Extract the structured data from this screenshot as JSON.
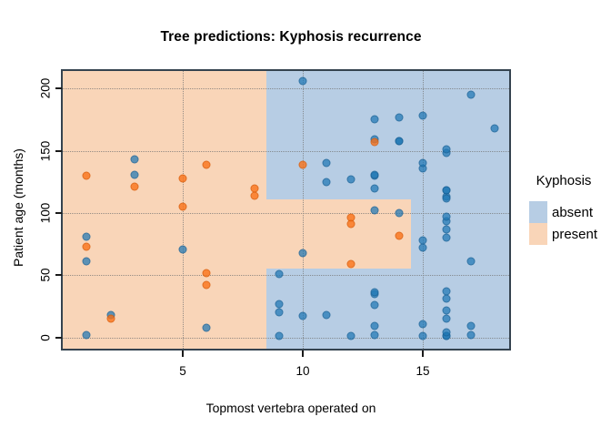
{
  "title": "Tree predictions: Kyphosis recurrence",
  "chart_data": {
    "type": "scatter",
    "title": "Tree predictions: Kyphosis recurrence",
    "xlabel": "Topmost vertebra operated on",
    "ylabel": "Patient age (months)",
    "xlim": [
      0,
      18.6
    ],
    "ylim": [
      -9,
      214
    ],
    "x_ticks": [
      5,
      10,
      15
    ],
    "y_ticks": [
      0,
      50,
      100,
      150,
      200
    ],
    "grid": "dotted",
    "colors": {
      "region_absent": "#b7cde4",
      "region_present": "#f9d5b8",
      "point_absent": "#1f77b4",
      "point_present": "#fa7014",
      "frame": "#35434f"
    },
    "decision_regions": {
      "background_class": "absent",
      "present_rects": [
        {
          "x0": 0,
          "x1": 8.5,
          "y0": -9,
          "y1": 214
        },
        {
          "x0": 8.5,
          "x1": 14.5,
          "y0": 55,
          "y1": 111
        }
      ]
    },
    "legend": {
      "title": "Kyphosis",
      "position": "right",
      "entries": [
        {
          "label": "absent",
          "color": "#b7cde4"
        },
        {
          "label": "present",
          "color": "#f9d5b8"
        }
      ]
    },
    "series": [
      {
        "name": "absent",
        "points": [
          [
            5,
            71
          ],
          [
            14,
            158
          ],
          [
            1,
            2
          ],
          [
            15,
            1
          ],
          [
            16,
            1
          ],
          [
            17,
            61
          ],
          [
            16,
            37
          ],
          [
            16,
            113
          ],
          [
            16,
            148
          ],
          [
            2,
            18
          ],
          [
            12,
            1
          ],
          [
            18,
            168
          ],
          [
            16,
            1
          ],
          [
            15,
            78
          ],
          [
            13,
            175
          ],
          [
            16,
            80
          ],
          [
            9,
            27
          ],
          [
            16,
            22
          ],
          [
            3,
            131
          ],
          [
            13,
            9
          ],
          [
            6,
            8
          ],
          [
            14,
            100
          ],
          [
            16,
            4
          ],
          [
            16,
            151
          ],
          [
            16,
            31
          ],
          [
            11,
            125
          ],
          [
            13,
            130
          ],
          [
            16,
            112
          ],
          [
            11,
            140
          ],
          [
            16,
            93
          ],
          [
            9,
            1
          ],
          [
            9,
            20
          ],
          [
            13,
            35
          ],
          [
            3,
            143
          ],
          [
            1,
            61
          ],
          [
            16,
            97
          ],
          [
            15,
            136
          ],
          [
            13,
            131
          ],
          [
            14,
            177
          ],
          [
            10,
            68
          ],
          [
            17,
            9
          ],
          [
            17,
            2
          ],
          [
            15,
            140
          ],
          [
            15,
            72
          ],
          [
            13,
            2
          ],
          [
            9,
            51
          ],
          [
            13,
            102
          ],
          [
            1,
            81
          ],
          [
            16,
            118
          ],
          [
            16,
            118
          ],
          [
            10,
            17
          ],
          [
            17,
            195
          ],
          [
            13,
            159
          ],
          [
            11,
            18
          ],
          [
            16,
            15
          ],
          [
            14,
            158
          ],
          [
            12,
            127
          ],
          [
            16,
            87
          ],
          [
            10,
            206
          ],
          [
            15,
            11
          ],
          [
            15,
            178
          ],
          [
            13,
            26
          ],
          [
            13,
            120
          ],
          [
            13,
            36
          ]
        ]
      },
      {
        "name": "present",
        "points": [
          [
            5,
            128
          ],
          [
            12,
            59
          ],
          [
            14,
            82
          ],
          [
            5,
            105
          ],
          [
            12,
            96
          ],
          [
            2,
            15
          ],
          [
            6,
            52
          ],
          [
            12,
            91
          ],
          [
            1,
            73
          ],
          [
            10,
            139
          ],
          [
            3,
            121
          ],
          [
            6,
            139
          ],
          [
            8,
            120
          ],
          [
            1,
            130
          ],
          [
            8,
            114
          ],
          [
            13,
            157
          ],
          [
            6,
            42
          ]
        ]
      }
    ]
  }
}
